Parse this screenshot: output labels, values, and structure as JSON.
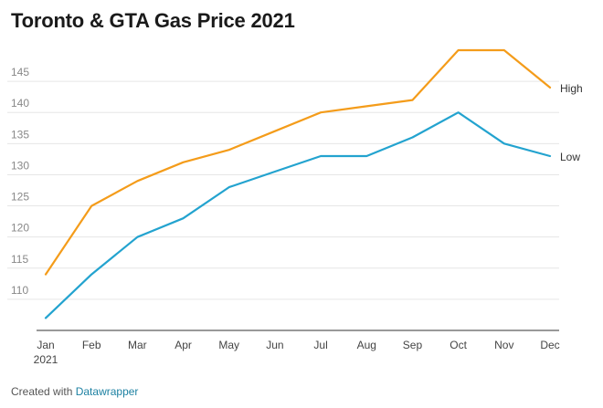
{
  "chart_data": {
    "type": "line",
    "title": "Toronto & GTA Gas Price 2021",
    "x": [
      "Jan",
      "Feb",
      "Mar",
      "Apr",
      "May",
      "Jun",
      "Jul",
      "Aug",
      "Sep",
      "Oct",
      "Nov",
      "Dec"
    ],
    "first_tick_sublabel": "2021",
    "ylim": [
      105,
      150
    ],
    "yticks": [
      110,
      115,
      120,
      125,
      130,
      135,
      140,
      145
    ],
    "grid": true,
    "legend": "inline-right",
    "series": [
      {
        "name": "High",
        "color": "#f49c1a",
        "values": [
          114,
          125,
          129,
          132,
          134,
          137,
          140,
          141,
          142,
          150,
          150,
          144
        ]
      },
      {
        "name": "Low",
        "color": "#23a3cf",
        "values": [
          107,
          114,
          120,
          123,
          128,
          130.5,
          133,
          133,
          136,
          140,
          135,
          133
        ]
      }
    ]
  },
  "footer": {
    "prefix": "Created with",
    "link_text": "Datawrapper"
  }
}
